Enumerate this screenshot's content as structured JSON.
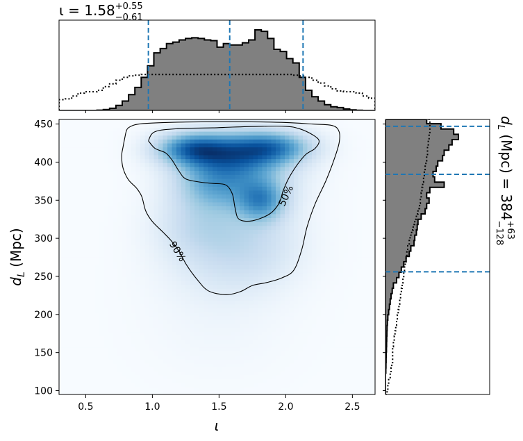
{
  "chart_data": [
    {
      "type": "histogram",
      "panel": "top-marginal",
      "title": "ι = 1.58",
      "title_sup": "+0.55",
      "title_sub": "−0.61",
      "xlim": [
        0.3,
        2.67
      ],
      "x_edges": [
        0.3,
        0.3474,
        0.3948,
        0.4422,
        0.4896,
        0.537,
        0.5844,
        0.6318,
        0.6792,
        0.7266,
        0.774,
        0.8214,
        0.8688,
        0.9162,
        0.9636,
        1.011,
        1.0584,
        1.1058,
        1.1532,
        1.2006,
        1.248,
        1.2954,
        1.3428,
        1.3902,
        1.4376,
        1.485,
        1.5324,
        1.5798,
        1.6272,
        1.6746,
        1.722,
        1.7694,
        1.8168,
        1.8642,
        1.9116,
        1.959,
        2.0064,
        2.0538,
        2.1012,
        2.1486,
        2.196,
        2.2434,
        2.291,
        2.338,
        2.386,
        2.433,
        2.48,
        2.528,
        2.575,
        2.622,
        2.67
      ],
      "filled_counts": [
        0,
        0,
        0,
        0,
        0,
        0,
        0.004,
        0.012,
        0.03,
        0.07,
        0.13,
        0.22,
        0.32,
        0.46,
        0.62,
        0.8,
        0.86,
        0.93,
        0.95,
        0.98,
        1.0,
        1.01,
        1.0,
        0.98,
        0.97,
        0.88,
        0.93,
        0.91,
        0.91,
        0.94,
        0.98,
        1.12,
        1.1,
        1.0,
        0.85,
        0.82,
        0.72,
        0.66,
        0.46,
        0.28,
        0.19,
        0.13,
        0.08,
        0.05,
        0.04,
        0.02,
        0.008,
        0.002,
        0,
        0
      ],
      "prior_counts": [
        0.15,
        0.16,
        0.2,
        0.24,
        0.26,
        0.26,
        0.28,
        0.33,
        0.37,
        0.42,
        0.46,
        0.48,
        0.49,
        0.5,
        0.5,
        0.5,
        0.5,
        0.5,
        0.5,
        0.5,
        0.5,
        0.5,
        0.5,
        0.5,
        0.5,
        0.5,
        0.5,
        0.5,
        0.5,
        0.5,
        0.5,
        0.5,
        0.5,
        0.5,
        0.5,
        0.5,
        0.5,
        0.49,
        0.48,
        0.46,
        0.42,
        0.38,
        0.34,
        0.3,
        0.27,
        0.26,
        0.26,
        0.24,
        0.2,
        0.17
      ],
      "ymax": 1.12,
      "vlines": [
        0.97,
        1.58,
        2.13
      ],
      "line_color": "#1f77b4",
      "fill_color": "#808080"
    },
    {
      "type": "heatmap",
      "panel": "main",
      "xlabel": "ι",
      "ylabel": "d",
      "ylabel_sub": "L",
      "ylabel_unit": " (Mpc)",
      "xlim": [
        0.3,
        2.67
      ],
      "ylim": [
        95,
        456
      ],
      "xticks": [
        0.5,
        1.0,
        1.5,
        2.0,
        2.5
      ],
      "xtick_labels": [
        "0.5",
        "1.0",
        "1.5",
        "2.0",
        "2.5"
      ],
      "yticks": [
        100,
        150,
        200,
        250,
        300,
        350,
        400,
        450
      ],
      "ytick_labels": [
        "100",
        "150",
        "200",
        "250",
        "300",
        "350",
        "400",
        "450"
      ],
      "colormap": "Blues",
      "density_blobs": [
        {
          "x": 1.3,
          "y": 418,
          "sx": 0.18,
          "sy": 14,
          "w": 1.0
        },
        {
          "x": 1.9,
          "y": 420,
          "sx": 0.2,
          "sy": 14,
          "w": 0.85
        },
        {
          "x": 1.6,
          "y": 412,
          "sx": 0.25,
          "sy": 18,
          "w": 0.7
        },
        {
          "x": 1.82,
          "y": 350,
          "sx": 0.12,
          "sy": 18,
          "w": 0.75
        },
        {
          "x": 1.45,
          "y": 375,
          "sx": 0.2,
          "sy": 25,
          "w": 0.55
        },
        {
          "x": 1.7,
          "y": 385,
          "sx": 0.25,
          "sy": 30,
          "w": 0.5
        },
        {
          "x": 1.35,
          "y": 315,
          "sx": 0.22,
          "sy": 30,
          "w": 0.3
        },
        {
          "x": 1.75,
          "y": 300,
          "sx": 0.25,
          "sy": 35,
          "w": 0.25
        },
        {
          "x": 1.55,
          "y": 260,
          "sx": 0.3,
          "sy": 30,
          "w": 0.12
        },
        {
          "x": 1.5,
          "y": 200,
          "sx": 0.35,
          "sy": 50,
          "w": 0.04
        }
      ],
      "contours": [
        {
          "label": "50%",
          "label_at": [
            2.0,
            356
          ],
          "label_angle": -65,
          "points": [
            [
              0.97,
              428
            ],
            [
              1.02,
              440
            ],
            [
              1.2,
              444
            ],
            [
              1.45,
              445
            ],
            [
              1.6,
              446
            ],
            [
              1.8,
              447
            ],
            [
              2.0,
              447
            ],
            [
              2.1,
              444
            ],
            [
              2.2,
              436
            ],
            [
              2.25,
              428
            ],
            [
              2.22,
              418
            ],
            [
              2.15,
              410
            ],
            [
              2.08,
              395
            ],
            [
              2.02,
              378
            ],
            [
              1.98,
              362
            ],
            [
              1.95,
              346
            ],
            [
              1.88,
              332
            ],
            [
              1.75,
              323
            ],
            [
              1.65,
              325
            ],
            [
              1.62,
              340
            ],
            [
              1.6,
              358
            ],
            [
              1.55,
              370
            ],
            [
              1.45,
              372
            ],
            [
              1.35,
              374
            ],
            [
              1.25,
              378
            ],
            [
              1.2,
              388
            ],
            [
              1.15,
              402
            ],
            [
              1.1,
              412
            ],
            [
              1.02,
              418
            ],
            [
              0.97,
              428
            ]
          ]
        },
        {
          "label": "90%",
          "label_at": [
            1.19,
            283
          ],
          "label_angle": 58,
          "points": [
            [
              0.8,
              438
            ],
            [
              0.78,
              420
            ],
            [
              0.77,
              408
            ],
            [
              0.78,
              392
            ],
            [
              0.82,
              377
            ],
            [
              0.88,
              366
            ],
            [
              0.92,
              355
            ],
            [
              0.95,
              336
            ],
            [
              1.0,
              322
            ],
            [
              1.08,
              308
            ],
            [
              1.14,
              297
            ],
            [
              1.2,
              283
            ],
            [
              1.26,
              264
            ],
            [
              1.34,
              245
            ],
            [
              1.42,
              231
            ],
            [
              1.55,
              226
            ],
            [
              1.66,
              230
            ],
            [
              1.75,
              238
            ],
            [
              1.86,
              242
            ],
            [
              1.97,
              248
            ],
            [
              2.06,
              258
            ],
            [
              2.12,
              285
            ],
            [
              2.16,
              315
            ],
            [
              2.22,
              345
            ],
            [
              2.3,
              375
            ],
            [
              2.36,
              402
            ],
            [
              2.4,
              425
            ],
            [
              2.4,
              440
            ],
            [
              2.35,
              448
            ],
            [
              2.2,
              450
            ],
            [
              2.0,
              452
            ],
            [
              1.7,
              453
            ],
            [
              1.4,
              453
            ],
            [
              1.1,
              452
            ],
            [
              0.9,
              450
            ],
            [
              0.82,
              445
            ],
            [
              0.8,
              438
            ]
          ]
        }
      ]
    },
    {
      "type": "histogram",
      "panel": "right-marginal",
      "orientation": "horizontal",
      "side_label": "d",
      "side_label_sub": "L",
      "side_label_text": " (Mpc) = 384",
      "side_label_sup": "+63",
      "side_label_sub2": "−128",
      "ylim": [
        95,
        456
      ],
      "y_edges": [
        95,
        101.97,
        108.94,
        115.91,
        122.88,
        129.85,
        136.82,
        143.79,
        150.76,
        157.73,
        164.7,
        171.67,
        178.64,
        185.61,
        192.58,
        199.55,
        206.52,
        213.49,
        220.46,
        227.43,
        234.4,
        241.37,
        248.34,
        255.31,
        262.28,
        269.25,
        276.22,
        283.19,
        290.16,
        297.13,
        304.1,
        311.07,
        318.04,
        325.01,
        331.98,
        338.95,
        345.92,
        352.89,
        359.86,
        366.83,
        373.8,
        380.77,
        387.74,
        394.71,
        401.68,
        408.65,
        415.62,
        422.59,
        429.56,
        436.53,
        443.5,
        450.47,
        456
      ],
      "filled_counts": [
        0,
        0,
        0,
        0,
        0.004,
        0.006,
        0.008,
        0.01,
        0.012,
        0.014,
        0.016,
        0.018,
        0.02,
        0.024,
        0.03,
        0.04,
        0.05,
        0.06,
        0.07,
        0.085,
        0.1,
        0.14,
        0.17,
        0.2,
        0.23,
        0.26,
        0.3,
        0.32,
        0.36,
        0.37,
        0.39,
        0.4,
        0.41,
        0.45,
        0.5,
        0.52,
        0.55,
        0.52,
        0.56,
        0.74,
        0.62,
        0.6,
        0.64,
        0.66,
        0.72,
        0.74,
        0.8,
        0.84,
        0.92,
        0.86,
        0.7,
        0.52
      ],
      "prior_counts": [
        0.02,
        0.03,
        0.04,
        0.06,
        0.07,
        0.08,
        0.09,
        0.09,
        0.09,
        0.1,
        0.11,
        0.12,
        0.13,
        0.14,
        0.15,
        0.16,
        0.17,
        0.18,
        0.19,
        0.2,
        0.21,
        0.22,
        0.23,
        0.24,
        0.25,
        0.26,
        0.27,
        0.28,
        0.3,
        0.31,
        0.33,
        0.35,
        0.37,
        0.39,
        0.41,
        0.43,
        0.44,
        0.45,
        0.46,
        0.47,
        0.48,
        0.49,
        0.5,
        0.51,
        0.52,
        0.53,
        0.53,
        0.54,
        0.55,
        0.56,
        0.56,
        0.56
      ],
      "xmax": 0.92,
      "hlines": [
        256,
        384,
        447
      ],
      "line_color": "#1f77b4",
      "fill_color": "#808080"
    }
  ]
}
